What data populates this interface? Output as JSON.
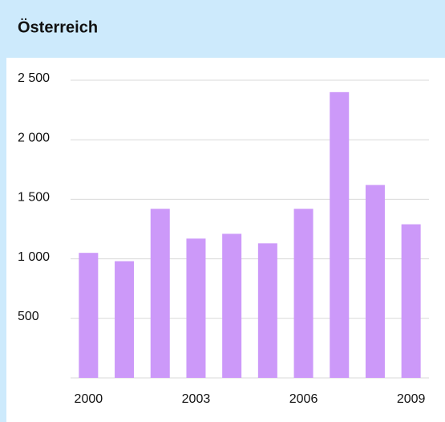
{
  "chart_data": {
    "type": "bar",
    "title": "Österreich",
    "categories": [
      "2000",
      null,
      null,
      "2003",
      null,
      null,
      "2006",
      null,
      null,
      "2009"
    ],
    "values": [
      1050,
      980,
      1420,
      1170,
      1210,
      1130,
      1420,
      2400,
      1620,
      1290
    ],
    "color": "#cc99f9",
    "ylim": [
      0,
      2500
    ],
    "yticks": [
      500,
      {
        "value": 1000,
        "label": "1 000"
      },
      {
        "value": 1500,
        "label": "1 500"
      },
      {
        "value": 2000,
        "label": "2 000"
      },
      {
        "value": 2500,
        "label": "2 500"
      }
    ],
    "grid": true
  }
}
